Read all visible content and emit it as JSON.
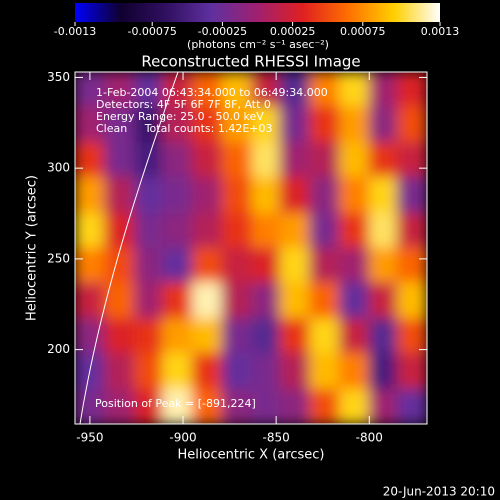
{
  "chart_data": {
    "type": "heatmap",
    "title": "Reconstructed RHESSI Image",
    "xlabel": "Heliocentric X (arcsec)",
    "ylabel": "Heliocentric Y (arcsec)",
    "colorbar_label": "(photons cm⁻² s⁻¹ asec⁻²)",
    "annotations": [
      "1-Feb-2004 06:43:34.000 to 06:49:34.000",
      "Detectors: 4F 5F 6F 7F 8F, Att 0",
      "Energy Range: 25.0 - 50.0 keV",
      "Clean     Total counts: 1.42E+03"
    ],
    "peak_label": "Position of Peak = [-891,224]",
    "footer": "20-Jun-2013 20:10",
    "xlim": [
      -958,
      -769
    ],
    "ylim": [
      159,
      353
    ],
    "xticks": [
      -950,
      -900,
      -850,
      -800
    ],
    "yticks": [
      200,
      250,
      300,
      350
    ],
    "clim": [
      -0.0013,
      0.0013
    ],
    "cticks": [
      -0.0013,
      -0.00075,
      -0.00025,
      0.00025,
      0.00075,
      0.0013
    ],
    "colorscale": [
      "#0000ff",
      "#100030",
      "#301060",
      "#6030a0",
      "#a02070",
      "#e02020",
      "#ff7000",
      "#ffd000",
      "#ffffff"
    ],
    "xbins": [
      -958,
      -942,
      -926,
      -911,
      -895,
      -879,
      -863,
      -848,
      -832,
      -816,
      -800,
      -785,
      -769
    ],
    "ybins": [
      353,
      334,
      314,
      295,
      275,
      256,
      237,
      217,
      198,
      178,
      159
    ],
    "values": [
      [
        -0.0002,
        0,
        -0.0003,
        0.0002,
        0.0006,
        0.0009,
        0.0002,
        -0.0004,
        0.0007,
        0.001,
        0,
        0.0003
      ],
      [
        0,
        -0.0002,
        -0.0006,
        0.0001,
        0.0004,
        0.0008,
        0.001,
        -0.0002,
        0.0004,
        0.0008,
        -0.0001,
        0.0005
      ],
      [
        0.0004,
        -0.0002,
        -0.0005,
        -0.0001,
        0.0002,
        0.0006,
        0.0011,
        0,
        0.0001,
        0.0009,
        0.0004,
        0.0002
      ],
      [
        0.0008,
        0.0001,
        -0.0003,
        -0.0002,
        0,
        0.0005,
        0.0009,
        0.0003,
        -0.0001,
        0.0007,
        0.001,
        -0.0002
      ],
      [
        0.001,
        0.0003,
        -0.0002,
        -0.0001,
        0.0001,
        0.0004,
        0.0007,
        0.0008,
        -0.0002,
        0.0004,
        0.0011,
        0.0002
      ],
      [
        0.0007,
        0.0005,
        -0.0001,
        -0.0003,
        0.0005,
        0.0002,
        0.0003,
        0.001,
        0.0001,
        0,
        0.0008,
        0.0006
      ],
      [
        0.0002,
        0.0006,
        0,
        0.0004,
        0.0012,
        0.0001,
        -0.0001,
        0.0009,
        0.0006,
        -0.0003,
        0.0002,
        0.0009
      ],
      [
        -0.0001,
        0.0003,
        0.0004,
        0.0008,
        0.0009,
        -0.0002,
        -0.0004,
        0.0004,
        0.001,
        0.0002,
        -0.0004,
        0.0005
      ],
      [
        -0.0003,
        0.0001,
        0.0005,
        0.001,
        0.0004,
        -0.0003,
        -0.0002,
        0.0001,
        0.0009,
        0.0007,
        -0.0005,
        0.0002
      ],
      [
        -0.0002,
        0,
        0.0003,
        0.0012,
        0.0006,
        -0.0001,
        -0.0002,
        -0.0001,
        0.0005,
        0.001,
        0,
        -0.0003
      ]
    ]
  }
}
